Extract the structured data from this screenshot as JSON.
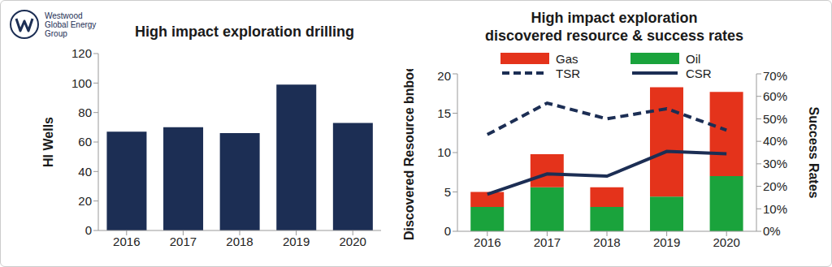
{
  "logo": [
    "Westwood",
    "Global Energy",
    "Group"
  ],
  "chart_data": [
    {
      "type": "bar",
      "title": [
        "High impact exploration drilling"
      ],
      "y_label": "HI Wells",
      "categories": [
        "2016",
        "2017",
        "2018",
        "2019",
        "2020"
      ],
      "values": [
        67,
        70,
        66,
        99,
        73
      ],
      "color": "#1c2e54",
      "ylim": [
        0,
        120
      ],
      "yticks": [
        0,
        20,
        40,
        60,
        80,
        100,
        120
      ],
      "grid": false
    },
    {
      "type": "bar",
      "title": [
        "High impact exploration",
        "discovered resource & success rates"
      ],
      "y_label": "Discovered Resource bnboe",
      "y2_label": "Success Rates",
      "categories": [
        "2016",
        "2017",
        "2018",
        "2019",
        "2020"
      ],
      "stacked": true,
      "legend": "top",
      "grid": false,
      "ylim": [
        0,
        20
      ],
      "yticks": [
        0,
        5,
        10,
        15,
        20
      ],
      "y2lim": [
        0,
        70
      ],
      "y2ticks": [
        {
          "value": 0,
          "label": "0%"
        },
        {
          "value": 10,
          "label": "10%"
        },
        {
          "value": 20,
          "label": "20%"
        },
        {
          "value": 30,
          "label": "30%"
        },
        {
          "value": 40,
          "label": "40%"
        },
        {
          "value": 50,
          "label": "50%"
        },
        {
          "value": 60,
          "label": "60%"
        },
        {
          "value": 70,
          "label": "70%"
        }
      ],
      "series": [
        {
          "name": "Gas",
          "type": "bar",
          "color": "#e4331b",
          "values": [
            1.9,
            4.2,
            2.5,
            13.9,
            10.7
          ]
        },
        {
          "name": "Oil",
          "type": "bar",
          "color": "#1aa33c",
          "values": [
            3.1,
            5.6,
            3.1,
            4.4,
            7.0
          ]
        },
        {
          "name": "TSR",
          "type": "line",
          "line_style": "dashed",
          "axis": "y2",
          "color": "#1c2e54",
          "values": [
            43,
            57,
            50,
            54.5,
            45
          ]
        },
        {
          "name": "CSR",
          "type": "line",
          "line_style": "solid",
          "axis": "y2",
          "color": "#1c2e54",
          "values": [
            16.5,
            25.5,
            24.5,
            35.5,
            34.5
          ]
        }
      ]
    }
  ]
}
